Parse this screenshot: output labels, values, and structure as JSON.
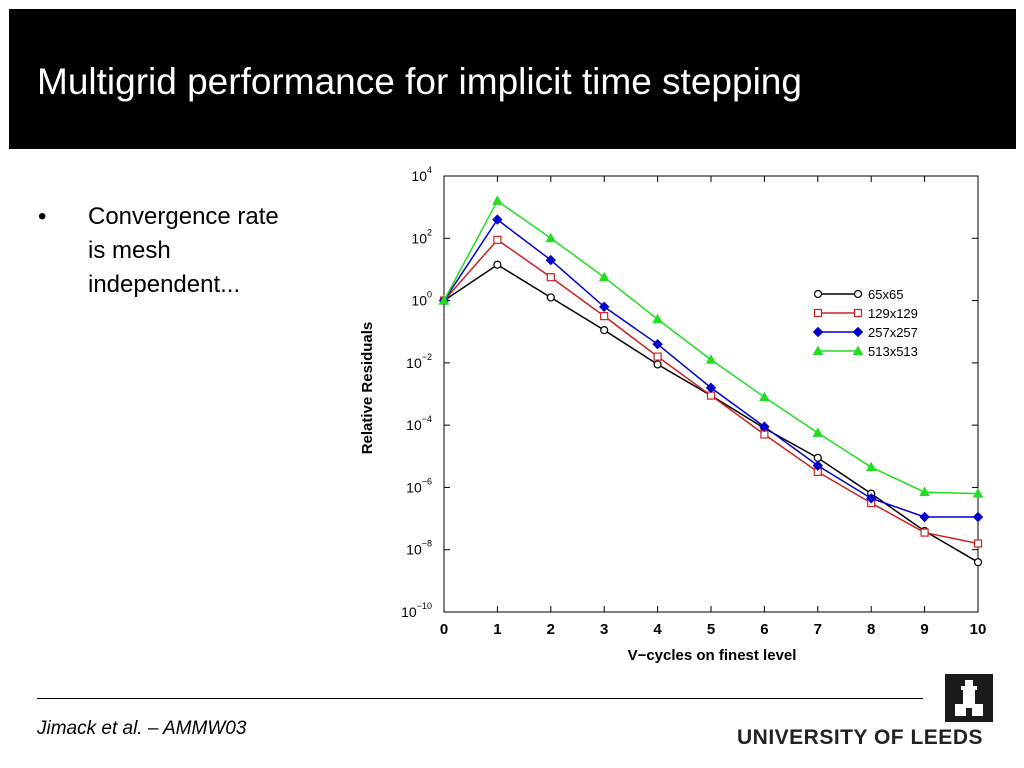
{
  "slide": {
    "title": "Multigrid performance for implicit time stepping",
    "bullets": [
      {
        "marker": "•",
        "lines": [
          "Convergence rate",
          "is mesh",
          "independent..."
        ]
      }
    ],
    "footer": {
      "citation": "Jimack et al. – AMMW03"
    },
    "logo": {
      "text": "UNIVERSITY OF LEEDS"
    }
  },
  "chart_data": {
    "type": "line",
    "title": "",
    "xlabel": "V−cycles on finest level",
    "ylabel": "Relative Residuals",
    "y_scale": "log10",
    "xlim": [
      0,
      10
    ],
    "ylim_exp": [
      -10,
      4
    ],
    "x_ticks": [
      0,
      1,
      2,
      3,
      4,
      5,
      6,
      7,
      8,
      9,
      10
    ],
    "y_ticks": [
      {
        "base": "10",
        "exp": "4",
        "value": 4
      },
      {
        "base": "10",
        "exp": "2",
        "value": 2
      },
      {
        "base": "10",
        "exp": "0",
        "value": 0
      },
      {
        "base": "10",
        "exp": "−2",
        "value": -2
      },
      {
        "base": "10",
        "exp": "−4",
        "value": -4
      },
      {
        "base": "10",
        "exp": "−6",
        "value": -6
      },
      {
        "base": "10",
        "exp": "−8",
        "value": -8
      },
      {
        "base": "10",
        "exp": "−10",
        "value": -10
      }
    ],
    "legend_position": "right",
    "grid": false,
    "x": [
      0,
      1,
      2,
      3,
      4,
      5,
      6,
      7,
      8,
      9,
      10
    ],
    "series": [
      {
        "name": "65x65",
        "color": "#000000",
        "marker": "circle",
        "log10_values": [
          0,
          1.15,
          0.1,
          -0.95,
          -2.05,
          -3.05,
          -4.1,
          -5.05,
          -6.2,
          -7.4,
          -8.4
        ]
      },
      {
        "name": "129x129",
        "color": "#cc2222",
        "marker": "square",
        "log10_values": [
          0,
          1.95,
          0.75,
          -0.5,
          -1.8,
          -3.05,
          -4.3,
          -5.5,
          -6.5,
          -7.45,
          -7.8
        ]
      },
      {
        "name": "257x257",
        "color": "#0000cc",
        "marker": "diamond",
        "log10_values": [
          0,
          2.6,
          1.3,
          -0.2,
          -1.4,
          -2.8,
          -4.05,
          -5.3,
          -6.35,
          -6.95,
          -6.95
        ]
      },
      {
        "name": "513x513",
        "color": "#22dd22",
        "marker": "triangle",
        "log10_values": [
          0,
          3.2,
          2.0,
          0.75,
          -0.6,
          -1.9,
          -3.1,
          -4.25,
          -5.35,
          -6.15,
          -6.2
        ]
      }
    ]
  }
}
